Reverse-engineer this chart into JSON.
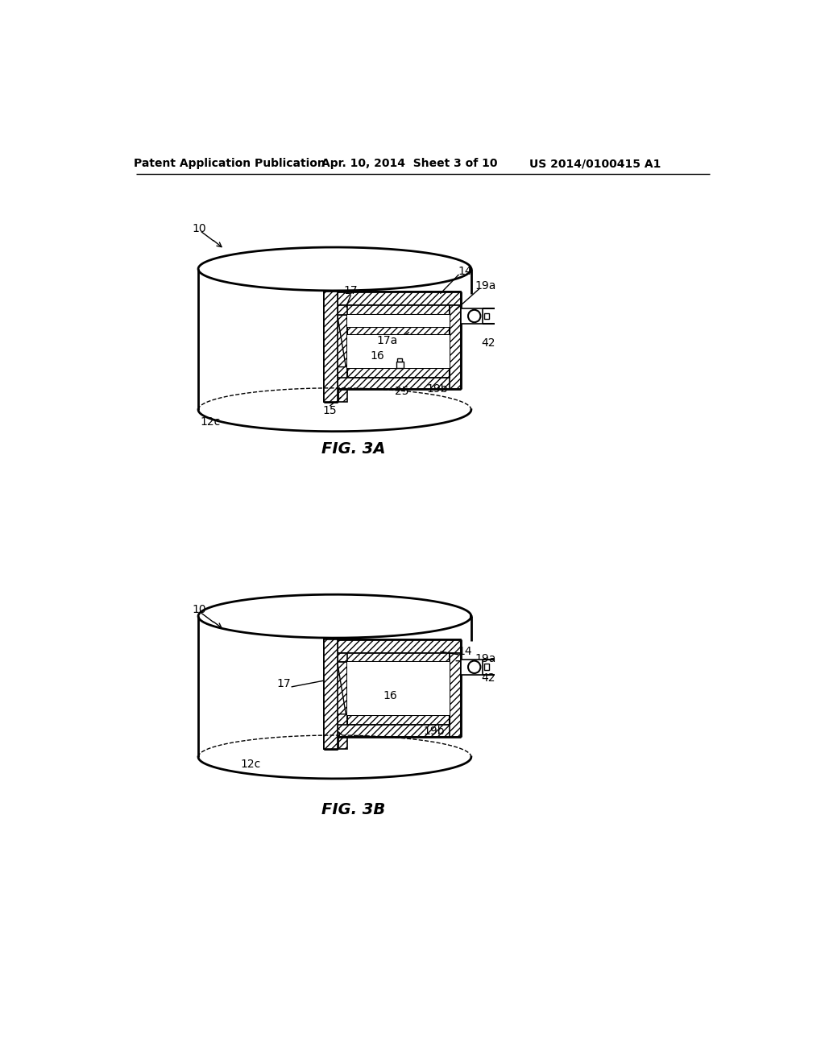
{
  "bg_color": "#ffffff",
  "header_left": "Patent Application Publication",
  "header_mid": "Apr. 10, 2014  Sheet 3 of 10",
  "header_right": "US 2014/0100415 A1",
  "fig3a_label": "FIG. 3A",
  "fig3b_label": "FIG. 3B",
  "line_color": "#000000",
  "lw_thin": 1.0,
  "lw_med": 1.5,
  "lw_thick": 2.0,
  "label_fs": 10,
  "header_fs": 10,
  "caption_fs": 14
}
